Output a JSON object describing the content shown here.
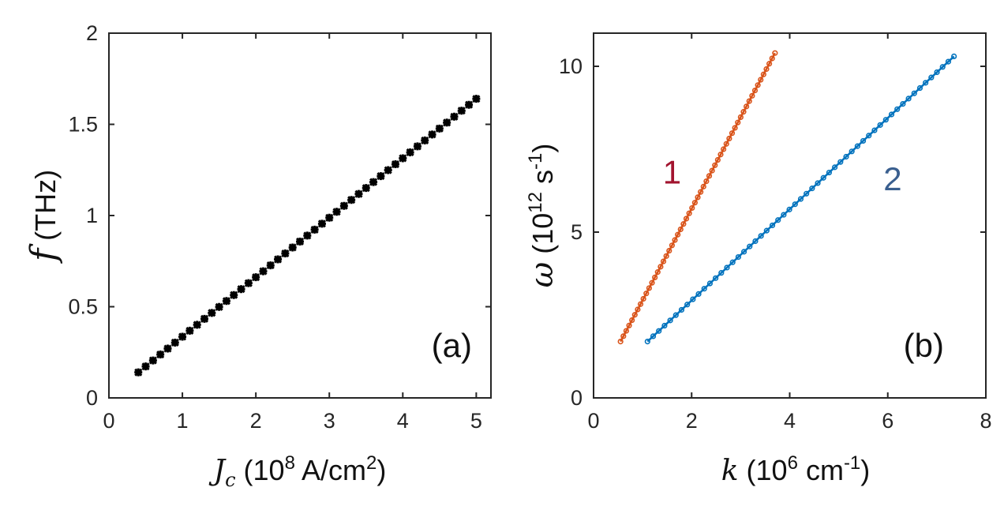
{
  "chart_data": [
    {
      "type": "scatter",
      "panel_label": "(a)",
      "ylabel_symbol": "f",
      "ylabel_unit": "(THz)",
      "xlabel_symbol": "J",
      "xlabel_subscript": "c",
      "xlabel_unit_prefix": "(10",
      "xlabel_unit_exp": "8",
      "xlabel_unit_mid": " A/cm",
      "xlabel_unit_exp2": "2",
      "xlabel_unit_suffix": ")",
      "xlim": [
        0,
        5.2
      ],
      "ylim": [
        0,
        2
      ],
      "xticks": [
        "0",
        "1",
        "2",
        "3",
        "4",
        "5"
      ],
      "yticks": [
        "0",
        "0.5",
        "1",
        "1.5",
        "2"
      ],
      "series": [
        {
          "name": "f vs Jc",
          "color": "#000000",
          "x_start": 0.4,
          "x_end": 5.0,
          "y_start": 0.14,
          "y_end": 1.64,
          "n_points": 47
        }
      ]
    },
    {
      "type": "line",
      "panel_label": "(b)",
      "ylabel_symbol": "ω",
      "ylabel_unit_prefix": "(10",
      "ylabel_unit_exp": "12",
      "ylabel_unit_mid": " s",
      "ylabel_unit_exp2": "-1",
      "ylabel_unit_suffix": ")",
      "xlabel_symbol": "k",
      "xlabel_unit_prefix": "(10",
      "xlabel_unit_exp": "6",
      "xlabel_unit_mid": " cm",
      "xlabel_unit_exp2": "-1",
      "xlabel_unit_suffix": ")",
      "xlim": [
        0,
        8
      ],
      "ylim": [
        0,
        11
      ],
      "xticks": [
        "0",
        "2",
        "4",
        "6",
        "8"
      ],
      "yticks": [
        "0",
        "5",
        "10"
      ],
      "series": [
        {
          "name": "1",
          "color": "#D95319",
          "label_color": "#A2142F",
          "x_start": 0.55,
          "x_end": 3.7,
          "y_start": 1.7,
          "y_end": 10.4,
          "n_points": 55,
          "label_at": [
            1.6,
            6.8
          ]
        },
        {
          "name": "2",
          "color": "#0072BD",
          "label_color": "#3A5F8F",
          "x_start": 1.1,
          "x_end": 7.35,
          "y_start": 1.7,
          "y_end": 10.3,
          "n_points": 55,
          "label_at": [
            6.1,
            6.6
          ]
        }
      ]
    }
  ]
}
